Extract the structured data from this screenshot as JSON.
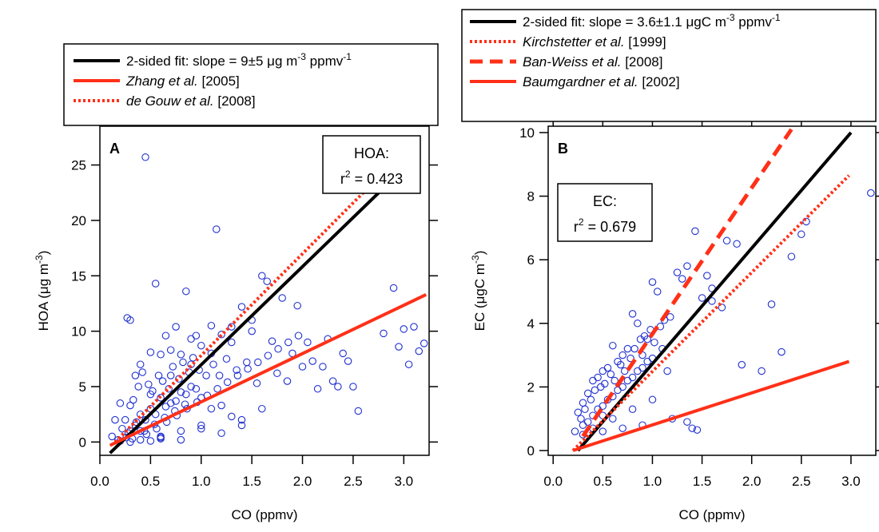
{
  "chart_data": [
    {
      "type": "scatter",
      "panel_label": "A",
      "xlabel": "CO (ppmv)",
      "ylabel_parts": [
        "HOA (",
        "μ",
        "g m",
        "-3",
        ")"
      ],
      "xlim": [
        0.0,
        3.25
      ],
      "ylim": [
        -1.2,
        28.5
      ],
      "xticks": [
        0.0,
        0.5,
        1.0,
        1.5,
        2.0,
        2.5,
        3.0
      ],
      "yticks": [
        0,
        5,
        10,
        15,
        20,
        25
      ],
      "grid": false,
      "legend_position": "top",
      "annotation": {
        "line1": "HOA:",
        "r_sym": "r",
        "r_sup": "2",
        "r_rest": " = 0.423"
      },
      "fit_lines": [
        {
          "legend": {
            "plain": "2-sided fit: slope = 9±5 ",
            "mu": "μ",
            "mid": "g m",
            "sup1": "-3",
            "after": " ppmv",
            "sup2": "-1"
          },
          "style": "solid-black",
          "color": "#000000",
          "x": [
            0.1,
            2.9
          ],
          "y": [
            -1.0,
            23.8
          ]
        },
        {
          "legend": {
            "name_italic": "Zhang et al.",
            "ref": " [2005]"
          },
          "style": "solid-red",
          "color": "#ff3018",
          "x": [
            0.1,
            3.22
          ],
          "y": [
            -0.3,
            13.3
          ]
        },
        {
          "legend": {
            "name_italic": "de Gouw et al.",
            "ref": " [2008]"
          },
          "style": "dotted-red",
          "color": "#ff3018",
          "x": [
            0.15,
            2.6
          ],
          "y": [
            0.0,
            22.5
          ]
        }
      ],
      "points": {
        "color": "#2030d0",
        "x": [
          0.45,
          1.15,
          0.55,
          0.85,
          0.27,
          0.3,
          1.6,
          1.65,
          1.8,
          1.95,
          2.05,
          2.1,
          2.2,
          2.25,
          2.3,
          2.4,
          2.45,
          2.5,
          2.9,
          2.95,
          3.0,
          3.05,
          3.1,
          3.15,
          3.2,
          2.8,
          1.4,
          1.5,
          1.7,
          1.9,
          2.0,
          1.3,
          1.2,
          1.1,
          1.0,
          0.95,
          0.9,
          0.8,
          0.75,
          0.7,
          0.65,
          0.6,
          0.5,
          0.4,
          0.35,
          0.2,
          0.15,
          0.12,
          0.25,
          0.33,
          0.38,
          0.42,
          0.48,
          0.52,
          0.58,
          0.62,
          0.68,
          0.72,
          0.78,
          0.82,
          0.88,
          0.92,
          0.98,
          1.05,
          1.12,
          1.18,
          1.25,
          1.35,
          1.45,
          1.55,
          1.75,
          1.85,
          2.15,
          2.35,
          2.55,
          0.3,
          0.4,
          0.5,
          0.6,
          0.7,
          0.8,
          0.9,
          1.0,
          1.1,
          0.35,
          0.45,
          0.55,
          0.65,
          0.75,
          0.85,
          0.95,
          0.22,
          0.28,
          0.32,
          0.36,
          0.44,
          0.54,
          0.64,
          0.74,
          0.84,
          1.2,
          1.3,
          1.4,
          1.6,
          0.18,
          0.26,
          0.46,
          0.56,
          0.66,
          0.76,
          0.86,
          0.96,
          1.06,
          1.16,
          1.26,
          1.36,
          1.46,
          1.56,
          1.66,
          1.76,
          1.86,
          1.96,
          0.3,
          0.5,
          0.7,
          0.9,
          1.1,
          1.3,
          1.5,
          0.6,
          0.8,
          1.0,
          1.2,
          1.4,
          0.4,
          0.6,
          0.8,
          1.0,
          0.2,
          0.3,
          0.4,
          0.5,
          0.6
        ],
        "y": [
          25.7,
          19.2,
          14.3,
          13.6,
          11.2,
          11.0,
          15.0,
          14.5,
          13.0,
          12.3,
          9.0,
          7.3,
          6.8,
          9.3,
          5.5,
          8.0,
          7.3,
          5.0,
          13.9,
          8.6,
          10.2,
          7.0,
          10.4,
          8.2,
          8.9,
          9.8,
          12.2,
          10.0,
          9.1,
          8.0,
          6.8,
          10.4,
          9.7,
          10.5,
          8.7,
          9.6,
          9.3,
          7.9,
          10.4,
          8.3,
          9.6,
          7.9,
          8.1,
          7.0,
          6.0,
          3.5,
          2.0,
          0.5,
          2.0,
          3.8,
          5.0,
          6.3,
          5.2,
          4.6,
          6.0,
          5.5,
          4.8,
          6.8,
          5.7,
          7.2,
          6.3,
          7.6,
          6.5,
          6.0,
          7.0,
          6.0,
          7.5,
          6.5,
          7.2,
          5.3,
          6.2,
          5.5,
          4.8,
          5.0,
          2.8,
          1.0,
          2.5,
          3.0,
          4.0,
          3.5,
          4.5,
          5.0,
          4.0,
          3.0,
          1.5,
          2.0,
          2.5,
          3.2,
          3.7,
          4.3,
          4.8,
          1.2,
          0.8,
          0.3,
          1.8,
          1.0,
          1.6,
          2.2,
          2.8,
          3.4,
          3.3,
          2.3,
          1.5,
          3.0,
          0.2,
          0.4,
          0.7,
          1.2,
          1.8,
          2.4,
          3.0,
          3.6,
          4.2,
          4.8,
          5.4,
          6.0,
          6.6,
          7.2,
          7.8,
          8.4,
          9.0,
          9.6,
          3.3,
          4.3,
          6.0,
          7.0,
          8.0,
          9.0,
          11.0,
          0.5,
          1.0,
          1.5,
          0.8,
          2.0,
          1.0,
          0.3,
          0.2,
          1.2,
          0.1,
          0.0,
          0.2,
          0.1,
          0.4
        ]
      }
    },
    {
      "type": "scatter",
      "panel_label": "B",
      "xlabel": "CO (ppmv)",
      "ylabel_parts": [
        "EC (",
        "μ",
        "gC m",
        "-3",
        ")"
      ],
      "xlim": [
        -0.05,
        3.25
      ],
      "ylim": [
        -0.15,
        10.2
      ],
      "xticks": [
        0.0,
        0.5,
        1.0,
        1.5,
        2.0,
        2.5,
        3.0
      ],
      "yticks": [
        0,
        2,
        4,
        6,
        8,
        10
      ],
      "grid": false,
      "legend_position": "top",
      "annotation": {
        "line1": "EC:",
        "r_sym": "r",
        "r_sup": "2",
        "r_rest": " = 0.679"
      },
      "fit_lines": [
        {
          "legend": {
            "plain": "2-sided fit: slope = 3.6±1.1 ",
            "mu": "μ",
            "mid": "gC m",
            "sup1": "-3",
            "after": " ppmv",
            "sup2": "-1"
          },
          "style": "solid-black",
          "color": "#000000",
          "x": [
            0.25,
            3.0
          ],
          "y": [
            0.0,
            10.0
          ]
        },
        {
          "legend": {
            "name_italic": "Kirchstetter et al.",
            "ref": " [1999]"
          },
          "style": "dotted-red",
          "color": "#ff3018",
          "x": [
            0.2,
            2.98
          ],
          "y": [
            0.0,
            8.65
          ]
        },
        {
          "legend": {
            "name_italic": "Ban-Weiss et al.",
            "ref": " [2008]"
          },
          "style": "dashed-red",
          "color": "#ff3018",
          "x": [
            0.3,
            2.4
          ],
          "y": [
            0.45,
            10.1
          ]
        },
        {
          "legend": {
            "name_italic": "Baumgardner et al.",
            "ref": " [2002]"
          },
          "style": "solid-red",
          "color": "#ff3018",
          "x": [
            0.2,
            2.98
          ],
          "y": [
            0.0,
            2.8
          ]
        }
      ],
      "points": {
        "color": "#2030d0",
        "x": [
          3.2,
          2.55,
          2.4,
          2.5,
          1.75,
          1.85,
          1.43,
          1.35,
          1.25,
          1.3,
          1.0,
          1.05,
          1.55,
          1.6,
          1.7,
          1.9,
          2.1,
          2.2,
          2.3,
          1.4,
          1.45,
          1.35,
          1.2,
          0.85,
          0.9,
          0.95,
          0.8,
          0.75,
          0.7,
          0.65,
          0.6,
          0.55,
          0.5,
          0.45,
          0.4,
          0.35,
          0.3,
          0.25,
          0.22,
          0.28,
          0.32,
          0.38,
          0.42,
          0.48,
          0.52,
          0.58,
          0.62,
          0.68,
          0.72,
          0.78,
          0.82,
          0.88,
          0.92,
          0.98,
          1.02,
          1.08,
          1.12,
          1.18,
          1.5,
          1.6,
          0.3,
          0.4,
          0.5,
          0.6,
          0.7,
          0.8,
          0.9,
          1.0,
          1.1,
          0.35,
          0.45,
          0.55,
          0.65,
          0.75,
          0.85,
          0.95,
          1.15,
          0.4,
          0.6,
          0.8,
          1.0,
          0.5,
          0.7,
          0.9,
          0.3,
          0.5
        ],
        "y": [
          8.1,
          7.2,
          6.1,
          6.8,
          6.6,
          6.5,
          6.9,
          5.8,
          5.6,
          5.4,
          5.3,
          5.0,
          5.5,
          5.1,
          4.5,
          2.7,
          2.5,
          4.6,
          3.1,
          0.7,
          0.65,
          0.9,
          1.0,
          4.0,
          3.0,
          3.5,
          4.3,
          3.2,
          3.0,
          2.8,
          3.3,
          2.6,
          2.5,
          2.3,
          2.2,
          1.8,
          1.5,
          1.2,
          0.6,
          1.0,
          1.3,
          1.6,
          1.9,
          2.0,
          2.1,
          2.4,
          2.2,
          2.7,
          2.5,
          2.9,
          3.2,
          3.5,
          3.6,
          3.8,
          3.4,
          3.9,
          4.1,
          4.2,
          4.8,
          4.7,
          0.8,
          1.1,
          1.4,
          1.7,
          2.0,
          2.3,
          2.6,
          2.9,
          3.2,
          0.9,
          1.3,
          1.6,
          1.9,
          2.2,
          2.5,
          2.8,
          2.5,
          0.7,
          1.0,
          1.3,
          1.6,
          0.6,
          0.7,
          0.8,
          0.5,
          1.1
        ]
      }
    }
  ]
}
